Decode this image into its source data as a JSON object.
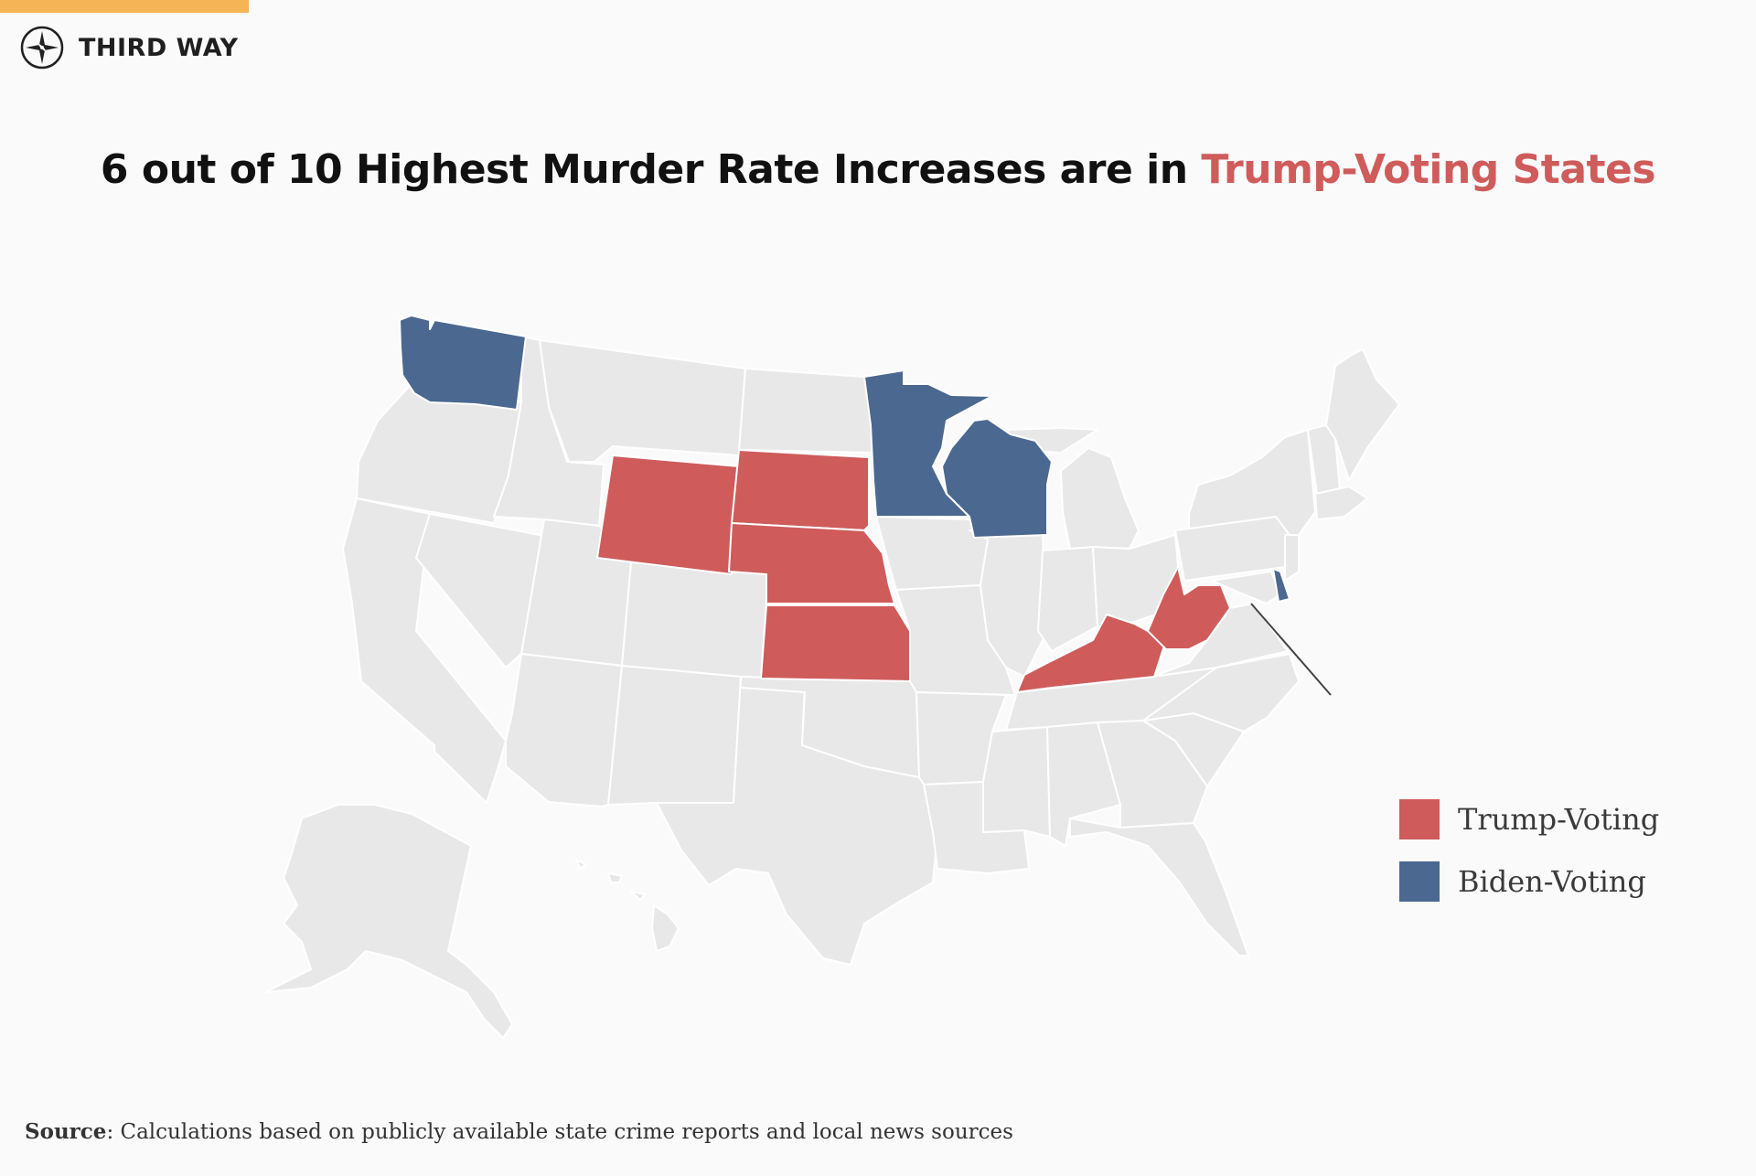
{
  "brand": {
    "name": "THIRD WAY",
    "logo_icon": "compass-icon"
  },
  "title": {
    "prefix": "6 out of 10 Highest Murder Rate Increases are in ",
    "highlight": "Trump-Voting States"
  },
  "colors": {
    "accent_bar": "#f5b556",
    "trump": "#cf5b5b",
    "biden": "#4a6890",
    "other": "#e8e8e8",
    "background": "#fafafa"
  },
  "map": {
    "trump_states": [
      "Wyoming",
      "South Dakota",
      "Nebraska",
      "Kansas",
      "Kentucky",
      "West Virginia"
    ],
    "biden_states": [
      "Washington",
      "Minnesota",
      "Wisconsin",
      "Delaware"
    ]
  },
  "legend": {
    "trump_label": "Trump-Voting",
    "biden_label": "Biden-Voting"
  },
  "source": {
    "label": "Source",
    "text": ": Calculations based on publicly available state crime reports and local news sources"
  }
}
